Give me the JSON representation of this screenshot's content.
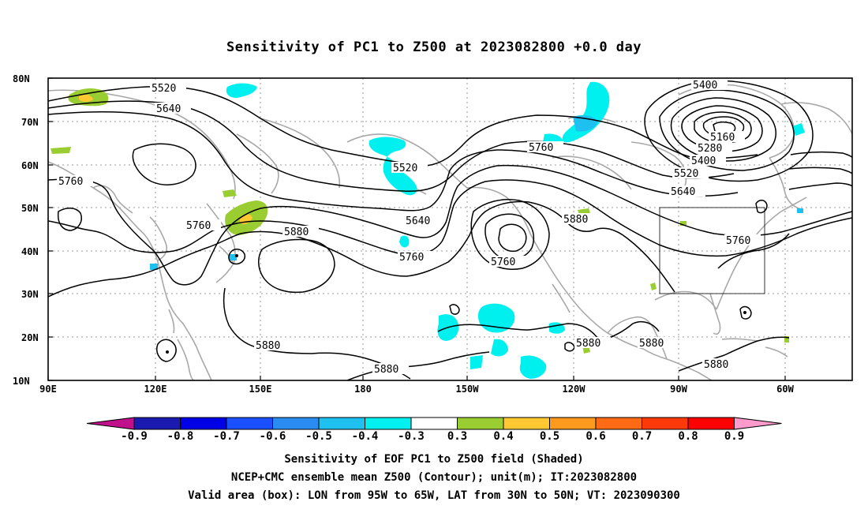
{
  "chart_data": {
    "type": "contour_map",
    "title": "Sensitivity of PC1 to Z500 at 2023082800 +0.0 day",
    "lon_range": [
      "90E",
      "45W"
    ],
    "lat_range": [
      "10N",
      "80N"
    ],
    "x_ticks": [
      "90E",
      "120E",
      "150E",
      "180",
      "150W",
      "120W",
      "90W",
      "60W"
    ],
    "y_ticks": [
      "10N",
      "20N",
      "30N",
      "40N",
      "50N",
      "60N",
      "70N",
      "80N"
    ],
    "grid": "dotted",
    "contour_labels": [
      "5520",
      "5640",
      "5760",
      "5760",
      "5520",
      "5640",
      "5760",
      "5880",
      "5760",
      "5880",
      "5880",
      "5880",
      "5880",
      "5880",
      "5880",
      "5400",
      "5160",
      "5280",
      "5400",
      "5520",
      "5640",
      "5760",
      "5760"
    ],
    "colorbar": {
      "values": [
        "-0.9",
        "-0.8",
        "-0.7",
        "-0.6",
        "-0.5",
        "-0.4",
        "-0.3",
        "0.3",
        "0.4",
        "0.5",
        "0.6",
        "0.7",
        "0.8",
        "0.9"
      ],
      "colors": [
        "#c0108c",
        "#1a1ab0",
        "#0000e6",
        "#1a50ff",
        "#2a8cf0",
        "#1ec0f0",
        "#00f0f0",
        "#ffffff",
        "#9acd32",
        "#ffc832",
        "#ff9a1e",
        "#ff6a14",
        "#ff3a0a",
        "#ff0000",
        "#ff9acd"
      ]
    },
    "box": {
      "lon_from": "95W",
      "lon_to": "65W",
      "lat_from": "30N",
      "lat_to": "50N"
    }
  },
  "captions": [
    "Sensitivity of EOF PC1 to Z500 field (Shaded)",
    "NCEP+CMC ensemble mean Z500 (Contour); unit(m); IT:2023082800",
    "Valid area (box): LON from 95W to 65W, LAT from 30N to 50N; VT: 2023090300"
  ]
}
